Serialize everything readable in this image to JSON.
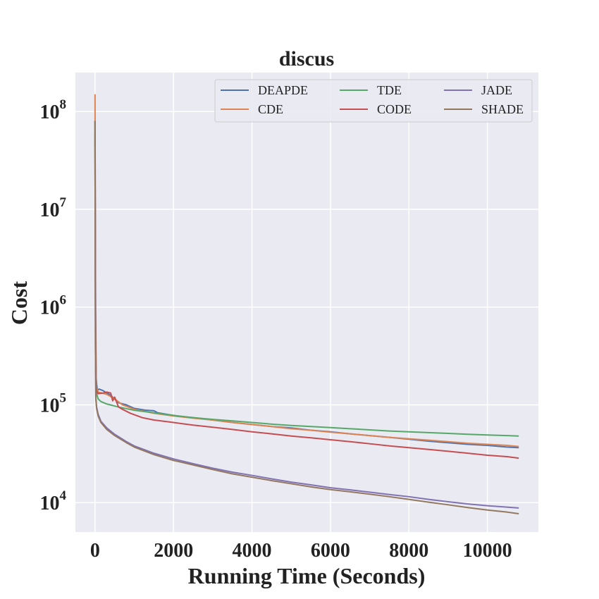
{
  "chart_data": {
    "type": "line",
    "title": "discus",
    "xlabel": "Running Time (Seconds)",
    "ylabel": "Cost",
    "xscale": "linear",
    "yscale": "log",
    "xlim": [
      -500,
      11300
    ],
    "ylim": [
      5000,
      250000000
    ],
    "xticks": [
      0,
      2000,
      4000,
      6000,
      8000,
      10000
    ],
    "xtick_labels": [
      "0",
      "2000",
      "4000",
      "6000",
      "8000",
      "10000"
    ],
    "yticks": [
      10000,
      100000,
      1000000,
      10000000,
      100000000
    ],
    "ytick_labels": [
      {
        "base": "10",
        "exp": "4"
      },
      {
        "base": "10",
        "exp": "5"
      },
      {
        "base": "10",
        "exp": "6"
      },
      {
        "base": "10",
        "exp": "7"
      },
      {
        "base": "10",
        "exp": "8"
      }
    ],
    "grid": true,
    "legend": {
      "placement": "top-right",
      "columns": 3
    },
    "series": [
      {
        "name": "DEAPDE",
        "color": "#4c72b0",
        "x": [
          0,
          15,
          30,
          60,
          100,
          200,
          400,
          600,
          800,
          1000,
          1300,
          1500,
          1600,
          2000,
          2200,
          2500,
          3000,
          3500,
          4000,
          4500,
          5000,
          5500,
          6000,
          6500,
          7000,
          7500,
          8000,
          8500,
          9000,
          9500,
          10000,
          10500,
          10800
        ],
        "y": [
          80000000,
          1000000,
          180000,
          140000,
          145000,
          140000,
          125000,
          105000,
          100000,
          92000,
          88000,
          87000,
          83000,
          78000,
          76000,
          74000,
          70000,
          66000,
          63000,
          60000,
          58000,
          55000,
          53000,
          50500,
          48500,
          46500,
          44500,
          42500,
          41000,
          39500,
          38500,
          37000,
          36500
        ]
      },
      {
        "name": "CDE",
        "color": "#dd8452",
        "x": [
          0,
          10,
          20,
          40,
          80,
          150,
          300,
          500,
          700,
          1000,
          1500,
          2000,
          2500,
          3000,
          3500,
          4000,
          4500,
          5000,
          5500,
          6000,
          6500,
          7000,
          7500,
          8000,
          8500,
          9000,
          9500,
          10000,
          10500,
          10800
        ],
        "y": [
          150000000,
          2000000,
          250000,
          150000,
          135000,
          133000,
          128000,
          115000,
          100000,
          90000,
          82000,
          77000,
          73000,
          70000,
          66000,
          63000,
          60000,
          57000,
          55000,
          52500,
          50500,
          48500,
          46500,
          45000,
          43500,
          42000,
          40500,
          39500,
          38500,
          37500
        ]
      },
      {
        "name": "TDE",
        "color": "#55a868",
        "x": [
          0,
          10,
          20,
          40,
          80,
          150,
          300,
          600,
          1000,
          1500,
          2000,
          2500,
          3000,
          3500,
          4000,
          4500,
          5000,
          5500,
          6000,
          6500,
          7000,
          7500,
          8000,
          8500,
          9000,
          9500,
          10000,
          10500,
          10800
        ],
        "y": [
          50000000,
          1000000,
          200000,
          130000,
          115000,
          108000,
          102000,
          95000,
          88000,
          83000,
          78000,
          74000,
          71000,
          68500,
          66000,
          63500,
          61500,
          60000,
          58500,
          57000,
          55500,
          54000,
          53000,
          52000,
          51000,
          50000,
          49200,
          48500,
          48000
        ]
      },
      {
        "name": "CODE",
        "color": "#c44e52",
        "x": [
          0,
          10,
          20,
          40,
          80,
          200,
          300,
          400,
          450,
          500,
          600,
          700,
          900,
          1200,
          1500,
          2000,
          2500,
          3000,
          3500,
          4000,
          4500,
          5000,
          5500,
          6000,
          6500,
          7000,
          7500,
          8000,
          8500,
          9000,
          9500,
          10000,
          10500,
          10800
        ],
        "y": [
          60000000,
          1200000,
          200000,
          138000,
          130000,
          132000,
          135000,
          132000,
          110000,
          120000,
          95000,
          90000,
          82000,
          74000,
          70000,
          66000,
          62000,
          59000,
          56000,
          53000,
          50500,
          48000,
          46000,
          44000,
          42000,
          40000,
          38000,
          36500,
          35000,
          33500,
          32000,
          30500,
          29500,
          28500
        ]
      },
      {
        "name": "JADE",
        "color": "#8172b3",
        "x": [
          0,
          10,
          20,
          40,
          80,
          150,
          300,
          500,
          800,
          1000,
          1500,
          2000,
          2500,
          3000,
          3500,
          4000,
          4500,
          5000,
          5500,
          6000,
          6500,
          7000,
          7500,
          8000,
          8500,
          9000,
          9500,
          10000,
          10500,
          10800
        ],
        "y": [
          80000000,
          400000,
          120000,
          95000,
          80000,
          68000,
          58000,
          50000,
          42000,
          38000,
          32000,
          28000,
          25000,
          22500,
          20500,
          19000,
          17500,
          16200,
          15200,
          14200,
          13500,
          12800,
          12100,
          11500,
          10800,
          10200,
          9700,
          9300,
          9000,
          8800
        ]
      },
      {
        "name": "SHADE",
        "color": "#937860",
        "x": [
          0,
          10,
          20,
          40,
          80,
          150,
          300,
          500,
          800,
          1000,
          1500,
          2000,
          2500,
          3000,
          3500,
          4000,
          4500,
          5000,
          5500,
          6000,
          6500,
          7000,
          7500,
          8000,
          8500,
          9000,
          9500,
          10000,
          10500,
          10800
        ],
        "y": [
          80000000,
          380000,
          115000,
          92000,
          77000,
          66000,
          56000,
          48500,
          41000,
          37000,
          31000,
          27000,
          24300,
          21800,
          19700,
          18200,
          16800,
          15600,
          14500,
          13600,
          12900,
          12200,
          11500,
          10800,
          10100,
          9500,
          8900,
          8400,
          8000,
          7700
        ]
      }
    ]
  }
}
